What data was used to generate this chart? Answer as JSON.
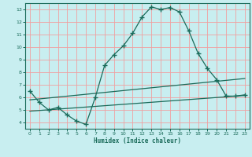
{
  "xlabel": "Humidex (Indice chaleur)",
  "bg_color": "#c8eef0",
  "grid_color": "#f0a0a0",
  "line_color": "#1a6b5a",
  "spine_color": "#1a6b5a",
  "xlim": [
    -0.5,
    23.5
  ],
  "ylim": [
    3.5,
    13.5
  ],
  "xticks": [
    0,
    1,
    2,
    3,
    4,
    5,
    6,
    7,
    8,
    9,
    10,
    11,
    12,
    13,
    14,
    15,
    16,
    17,
    18,
    19,
    20,
    21,
    22,
    23
  ],
  "yticks": [
    4,
    5,
    6,
    7,
    8,
    9,
    10,
    11,
    12,
    13
  ],
  "curve1_x": [
    0,
    1,
    2,
    3,
    4,
    5,
    6,
    7,
    8,
    9,
    10,
    11,
    12,
    13,
    14,
    15,
    16,
    17,
    18,
    19,
    20,
    21,
    22,
    23
  ],
  "curve1_y": [
    6.5,
    5.6,
    5.0,
    5.2,
    4.6,
    4.1,
    3.85,
    6.0,
    8.55,
    9.4,
    10.1,
    11.1,
    12.4,
    13.2,
    13.0,
    13.15,
    12.8,
    11.3,
    9.5,
    8.3,
    7.4,
    6.1,
    6.1,
    6.2
  ],
  "curve2_x": [
    0,
    23
  ],
  "curve2_y": [
    5.8,
    7.5
  ],
  "curve3_x": [
    0,
    23
  ],
  "curve3_y": [
    4.9,
    6.15
  ]
}
